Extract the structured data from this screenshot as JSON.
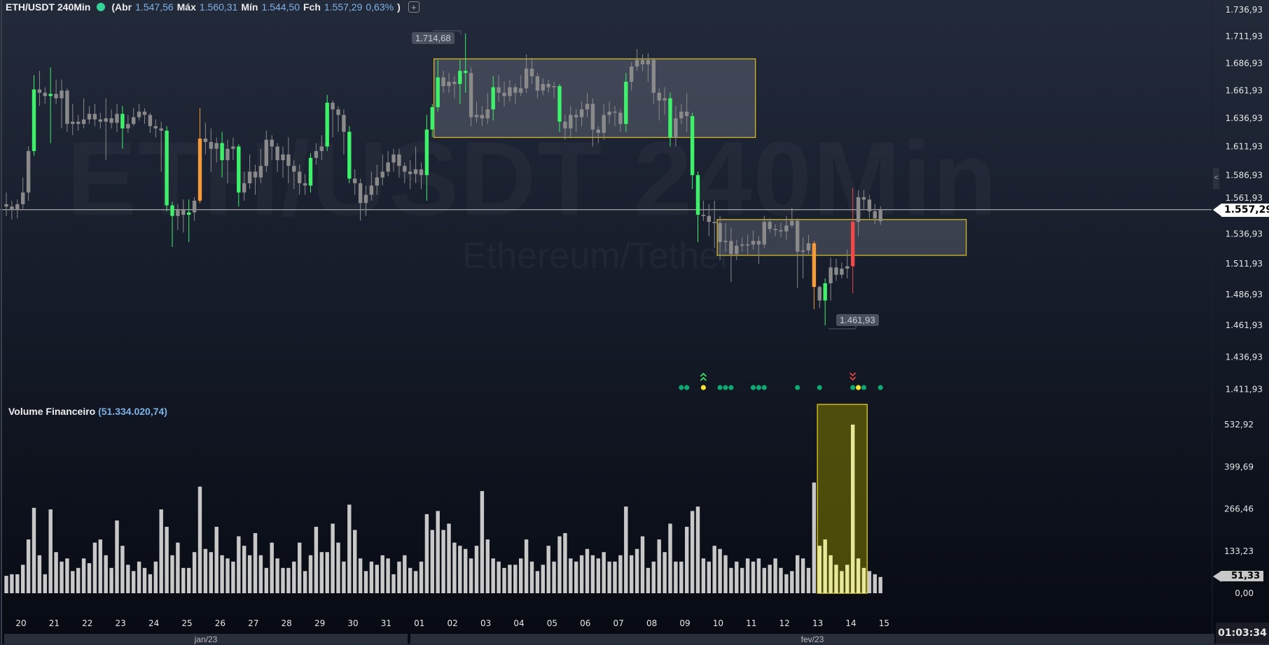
{
  "header": {
    "symbol": "ETH/USDT 240Min",
    "status_color": "#36d399",
    "open_label": "(Abr",
    "open_value": "1.547,56",
    "high_label": "Máx",
    "high_value": "1.560,31",
    "low_label": "Mín",
    "low_value": "1.544,50",
    "close_label": "Fch",
    "close_value": "1.557,29",
    "change_value": "0,63%",
    "close_paren": ")",
    "add_label": "+"
  },
  "watermark": {
    "title": "ETH/USDT 240Min",
    "subtitle": "Ethereum/Tether"
  },
  "volume_legend": {
    "label": "Volume Financeiro",
    "value": "(51.334.020,74)"
  },
  "price_tag": "1.557,29",
  "volume_tag": "51,33",
  "high_marker": "1.714,68",
  "low_marker": "1.461,93",
  "clock": "01:03:34",
  "collapse_icon": "<",
  "months": [
    "jan/23",
    "fev/23"
  ],
  "colors": {
    "neutral": "#8a8a8a",
    "green": "#3ef06a",
    "orange": "#f59a3a",
    "red": "#f04848",
    "box_stroke": "#d4b82a",
    "volume": "#c8c8c8",
    "volume_highlight": "#e8e89a",
    "dot_green": "#10a870",
    "dot_yellow": "#f5e431"
  },
  "chart_data": {
    "type": "candlestick",
    "price_scale": "log",
    "ylim": [
      1411.93,
      1736.93
    ],
    "price_ticks": [
      1736.93,
      1711.93,
      1686.93,
      1661.93,
      1636.93,
      1611.93,
      1586.93,
      1561.93,
      1536.93,
      1511.93,
      1486.93,
      1461.93,
      1436.93,
      1411.93
    ],
    "price_tick_labels": [
      "1.736,93",
      "1.711,93",
      "1.686,93",
      "1.661,93",
      "1.636,93",
      "1.611,93",
      "1.586,93",
      "1.561,93",
      "1.536,93",
      "1.511,93",
      "1.486,93",
      "1.461,93",
      "1.436,93",
      "1.411,93"
    ],
    "x_tick_labels": [
      "20",
      "21",
      "22",
      "23",
      "24",
      "25",
      "26",
      "27",
      "28",
      "29",
      "30",
      "31",
      "01",
      "02",
      "03",
      "04",
      "05",
      "06",
      "07",
      "08",
      "09",
      "10",
      "11",
      "12",
      "13",
      "14",
      "15"
    ],
    "current_price": 1557.29,
    "open": [
      1562,
      1560,
      1557,
      1562,
      1572,
      1608,
      1663,
      1660,
      1657,
      1659,
      1655,
      1662,
      1632,
      1634,
      1632,
      1636,
      1641,
      1636,
      1634,
      1637,
      1633,
      1641,
      1628,
      1632,
      1638,
      1643,
      1640,
      1630,
      1628,
      1626,
      1561,
      1552,
      1557,
      1553,
      1555,
      1565,
      1619,
      1616,
      1610,
      1615,
      1600,
      1610,
      1612,
      1572,
      1580,
      1590,
      1585,
      1595,
      1618,
      1612,
      1600,
      1605,
      1595,
      1590,
      1580,
      1578,
      1602,
      1608,
      1612,
      1651,
      1645,
      1640,
      1625,
      1584,
      1580,
      1563,
      1570,
      1578,
      1585,
      1590,
      1598,
      1605,
      1595,
      1590,
      1588,
      1592,
      1587,
      1627,
      1647,
      1674,
      1666,
      1670,
      1668,
      1680,
      1678,
      1638,
      1640,
      1637,
      1645,
      1665,
      1660,
      1657,
      1665,
      1660,
      1664,
      1682,
      1675,
      1662,
      1668,
      1665,
      1666,
      1634,
      1628,
      1640,
      1638,
      1645,
      1650,
      1627,
      1624,
      1640,
      1643,
      1642,
      1632,
      1670,
      1684,
      1690,
      1686,
      1690,
      1660,
      1653,
      1655,
      1620,
      1637,
      1643,
      1639,
      1587,
      1553,
      1552,
      1547,
      1546,
      1530,
      1531,
      1520,
      1527,
      1528,
      1528,
      1531,
      1528,
      1547,
      1541,
      1540,
      1539,
      1544,
      1548,
      1522,
      1523,
      1529,
      1493,
      1482,
      1496,
      1509,
      1503,
      1508,
      1510,
      1547,
      1568,
      1566,
      1556,
      1547.56
    ],
    "high": [
      1572,
      1565,
      1566,
      1585,
      1612,
      1676,
      1680,
      1665,
      1683,
      1672,
      1672,
      1664,
      1650,
      1640,
      1655,
      1648,
      1650,
      1642,
      1655,
      1645,
      1650,
      1648,
      1640,
      1646,
      1650,
      1646,
      1642,
      1636,
      1634,
      1630,
      1564,
      1562,
      1566,
      1566,
      1568,
      1646,
      1633,
      1628,
      1620,
      1625,
      1618,
      1620,
      1614,
      1590,
      1605,
      1596,
      1610,
      1626,
      1622,
      1615,
      1612,
      1620,
      1600,
      1596,
      1588,
      1606,
      1615,
      1622,
      1658,
      1653,
      1648,
      1645,
      1630,
      1592,
      1584,
      1578,
      1590,
      1596,
      1605,
      1608,
      1610,
      1610,
      1598,
      1600,
      1612,
      1598,
      1640,
      1650,
      1690,
      1680,
      1678,
      1675,
      1690,
      1714.68,
      1683,
      1652,
      1648,
      1660,
      1675,
      1676,
      1670,
      1672,
      1668,
      1676,
      1695,
      1692,
      1678,
      1673,
      1672,
      1670,
      1668,
      1640,
      1648,
      1645,
      1652,
      1660,
      1655,
      1630,
      1650,
      1652,
      1648,
      1645,
      1678,
      1688,
      1700,
      1695,
      1696,
      1692,
      1664,
      1665,
      1660,
      1648,
      1650,
      1660,
      1642,
      1590,
      1565,
      1562,
      1565,
      1552,
      1546,
      1542,
      1532,
      1534,
      1536,
      1540,
      1535,
      1552,
      1550,
      1545,
      1546,
      1552,
      1559,
      1550,
      1534,
      1536,
      1531,
      1494,
      1500,
      1517,
      1516,
      1513,
      1524,
      1576,
      1574,
      1574,
      1570,
      1562,
      1560.31
    ],
    "low": [
      1552,
      1549,
      1550,
      1558,
      1565,
      1604,
      1648,
      1650,
      1615,
      1650,
      1628,
      1625,
      1622,
      1626,
      1628,
      1632,
      1630,
      1628,
      1600,
      1628,
      1625,
      1610,
      1624,
      1630,
      1635,
      1632,
      1624,
      1620,
      1590,
      1556,
      1526,
      1540,
      1538,
      1530,
      1548,
      1563,
      1605,
      1590,
      1598,
      1585,
      1580,
      1600,
      1560,
      1565,
      1575,
      1570,
      1580,
      1590,
      1600,
      1590,
      1585,
      1580,
      1575,
      1570,
      1570,
      1572,
      1596,
      1600,
      1608,
      1620,
      1625,
      1605,
      1580,
      1570,
      1548,
      1552,
      1565,
      1570,
      1578,
      1586,
      1590,
      1585,
      1580,
      1575,
      1580,
      1575,
      1565,
      1620,
      1643,
      1660,
      1660,
      1655,
      1650,
      1660,
      1630,
      1633,
      1630,
      1632,
      1635,
      1652,
      1648,
      1652,
      1650,
      1657,
      1660,
      1668,
      1655,
      1658,
      1660,
      1655,
      1625,
      1618,
      1620,
      1625,
      1630,
      1638,
      1612,
      1615,
      1618,
      1632,
      1630,
      1625,
      1625,
      1662,
      1680,
      1680,
      1670,
      1650,
      1635,
      1640,
      1612,
      1612,
      1632,
      1625,
      1575,
      1530,
      1548,
      1535,
      1525,
      1515,
      1522,
      1497,
      1515,
      1522,
      1520,
      1524,
      1512,
      1525,
      1538,
      1535,
      1534,
      1532,
      1542,
      1492,
      1500,
      1520,
      1475,
      1476,
      1461.93,
      1482,
      1498,
      1500,
      1500,
      1488,
      1535,
      1558,
      1550,
      1545,
      1544.5
    ],
    "close": [
      1560,
      1557,
      1562,
      1572,
      1608,
      1663,
      1660,
      1657,
      1659,
      1655,
      1662,
      1632,
      1634,
      1632,
      1636,
      1641,
      1636,
      1634,
      1637,
      1633,
      1641,
      1628,
      1632,
      1638,
      1643,
      1640,
      1630,
      1628,
      1626,
      1561,
      1552,
      1557,
      1553,
      1555,
      1565,
      1619,
      1616,
      1610,
      1615,
      1600,
      1610,
      1612,
      1572,
      1580,
      1590,
      1585,
      1595,
      1618,
      1612,
      1600,
      1605,
      1595,
      1590,
      1580,
      1578,
      1602,
      1608,
      1612,
      1651,
      1645,
      1640,
      1625,
      1584,
      1580,
      1563,
      1570,
      1578,
      1585,
      1590,
      1598,
      1605,
      1595,
      1590,
      1588,
      1592,
      1587,
      1627,
      1647,
      1674,
      1666,
      1670,
      1668,
      1680,
      1678,
      1638,
      1640,
      1637,
      1645,
      1665,
      1660,
      1657,
      1665,
      1660,
      1664,
      1682,
      1675,
      1662,
      1668,
      1665,
      1666,
      1634,
      1628,
      1640,
      1638,
      1645,
      1650,
      1627,
      1624,
      1640,
      1643,
      1642,
      1632,
      1670,
      1684,
      1690,
      1686,
      1690,
      1660,
      1653,
      1655,
      1620,
      1637,
      1643,
      1639,
      1587,
      1553,
      1552,
      1547,
      1546,
      1530,
      1531,
      1520,
      1527,
      1528,
      1528,
      1531,
      1528,
      1547,
      1541,
      1540,
      1539,
      1544,
      1548,
      1522,
      1523,
      1529,
      1493,
      1482,
      1496,
      1509,
      1503,
      1508,
      1510,
      1547,
      1568,
      1566,
      1556,
      1550,
      1557.29
    ],
    "green_candles": [
      5,
      8,
      21,
      29,
      30,
      33,
      39,
      42,
      55,
      58,
      62,
      76,
      77,
      78,
      82,
      83,
      88,
      100,
      112,
      120,
      124,
      125,
      148
    ],
    "orange_candles": [
      35,
      146
    ],
    "red_candles": [
      153
    ],
    "volume": {
      "ylim": [
        0,
        532.92
      ],
      "ticks": [
        532.92,
        399.69,
        266.46,
        133.23,
        0
      ],
      "tick_labels": [
        "532,92",
        "399,69",
        "266,46",
        "133,23",
        "0,00"
      ],
      "values": [
        55,
        60,
        60,
        90,
        170,
        270,
        120,
        60,
        265,
        130,
        100,
        110,
        70,
        80,
        110,
        95,
        160,
        170,
        120,
        80,
        230,
        150,
        90,
        70,
        100,
        80,
        60,
        100,
        265,
        210,
        120,
        160,
        80,
        80,
        130,
        337,
        140,
        130,
        210,
        120,
        110,
        100,
        180,
        150,
        120,
        190,
        120,
        80,
        160,
        110,
        80,
        80,
        100,
        160,
        70,
        120,
        210,
        130,
        130,
        220,
        160,
        100,
        280,
        200,
        110,
        70,
        100,
        90,
        120,
        110,
        60,
        100,
        120,
        80,
        70,
        100,
        250,
        200,
        260,
        200,
        220,
        160,
        150,
        140,
        110,
        150,
        323,
        170,
        110,
        100,
        80,
        90,
        90,
        110,
        170,
        100,
        70,
        90,
        150,
        100,
        180,
        190,
        110,
        100,
        120,
        140,
        120,
        110,
        130,
        100,
        100,
        120,
        274,
        120,
        140,
        180,
        80,
        100,
        170,
        130,
        220,
        100,
        100,
        210,
        260,
        274,
        110,
        100,
        150,
        140,
        120,
        80,
        100,
        80,
        110,
        100,
        110,
        80,
        90,
        110,
        80,
        60,
        70,
        120,
        110,
        80,
        350,
        150,
        170,
        120,
        90,
        70,
        90,
        533,
        110,
        80,
        70,
        60,
        51.33
      ],
      "highlight": {
        "start_candle": 146.6,
        "end_candle": 155.6,
        "top": 597
      }
    },
    "zones": [
      {
        "start_candle": 77.3,
        "end_candle": 135.4,
        "price_top": 1691,
        "price_bottom": 1620
      },
      {
        "start_candle": 128.5,
        "end_candle": 173.5,
        "price_top": 1549,
        "price_bottom": 1519
      }
    ],
    "signal_dots": [
      {
        "candle": 122,
        "color": "green"
      },
      {
        "candle": 123,
        "color": "green"
      },
      {
        "candle": 126,
        "color": "yellow"
      },
      {
        "candle": 129,
        "color": "green"
      },
      {
        "candle": 130,
        "color": "green"
      },
      {
        "candle": 131,
        "color": "green"
      },
      {
        "candle": 135,
        "color": "green"
      },
      {
        "candle": 136,
        "color": "green"
      },
      {
        "candle": 137,
        "color": "green"
      },
      {
        "candle": 143,
        "color": "green"
      },
      {
        "candle": 147,
        "color": "green"
      },
      {
        "candle": 153,
        "color": "green"
      },
      {
        "candle": 154,
        "color": "yellow"
      },
      {
        "candle": 155,
        "color": "green"
      },
      {
        "candle": 158,
        "color": "green"
      }
    ],
    "signal_arrows": [
      {
        "candle": 126,
        "direction": "up",
        "color": "#3ef06a"
      },
      {
        "candle": 153,
        "direction": "down",
        "color": "#f04848"
      }
    ]
  }
}
